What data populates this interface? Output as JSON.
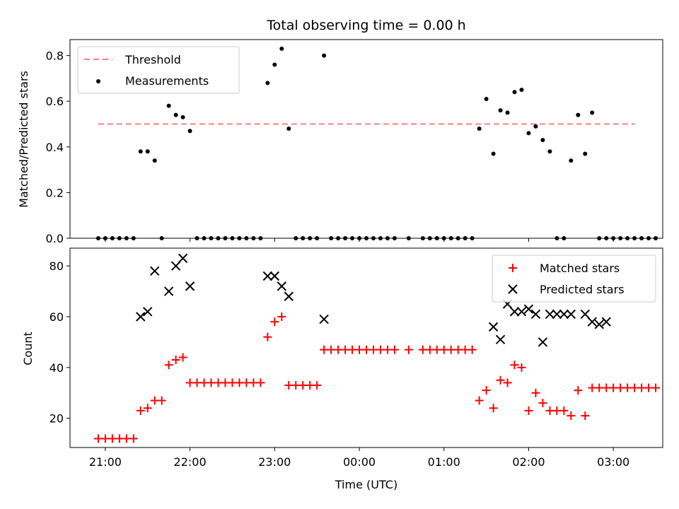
{
  "chart_data": [
    {
      "type": "scatter",
      "title": "Total observing time = 0.00 h",
      "xlabel": "",
      "ylabel": "Matched/Predicted stars",
      "xlim": [
        "20:35",
        "03:35"
      ],
      "ylim": [
        0,
        0.87
      ],
      "xticks": [
        "21:00",
        "22:00",
        "23:00",
        "00:00",
        "01:00",
        "02:00",
        "03:00"
      ],
      "yticks": [
        "0.0",
        "0.2",
        "0.4",
        "0.6",
        "0.8"
      ],
      "legend_position": "top-left",
      "series": [
        {
          "name": "Threshold",
          "style": "dashed-line",
          "color": "#ff7f7f",
          "x": [
            "20:55",
            "03:15"
          ],
          "y": [
            0.5,
            0.5
          ]
        },
        {
          "name": "Measurements",
          "style": "dot",
          "color": "#000000",
          "x": [
            "20:55",
            "21:00",
            "21:05",
            "21:10",
            "21:15",
            "21:20",
            "21:25",
            "21:30",
            "21:35",
            "21:40",
            "21:45",
            "21:50",
            "21:55",
            "22:00",
            "22:05",
            "22:10",
            "22:15",
            "22:20",
            "22:25",
            "22:30",
            "22:35",
            "22:40",
            "22:45",
            "22:50",
            "22:55",
            "23:00",
            "23:05",
            "23:10",
            "23:15",
            "23:20",
            "23:25",
            "23:30",
            "23:35",
            "23:40",
            "23:45",
            "23:50",
            "23:55",
            "00:00",
            "00:05",
            "00:10",
            "00:15",
            "00:20",
            "00:25",
            "00:35",
            "00:45",
            "00:50",
            "00:55",
            "01:00",
            "01:05",
            "01:10",
            "01:15",
            "01:20",
            "01:25",
            "01:30",
            "01:35",
            "01:40",
            "01:45",
            "01:50",
            "01:55",
            "02:00",
            "02:05",
            "02:10",
            "02:15",
            "02:20",
            "02:25",
            "02:30",
            "02:35",
            "02:40",
            "02:45",
            "02:50",
            "02:55",
            "03:00",
            "03:05",
            "03:10",
            "03:15",
            "03:20",
            "03:25",
            "03:30"
          ],
          "y": [
            0,
            0,
            0,
            0,
            0,
            0,
            0.38,
            0.38,
            0.34,
            0,
            0.58,
            0.54,
            0.53,
            0.47,
            0,
            0,
            0,
            0,
            0,
            0,
            0,
            0,
            0,
            0,
            0.68,
            0.76,
            0.83,
            0.48,
            0,
            0,
            0,
            0,
            0.8,
            0,
            0,
            0,
            0,
            0,
            0,
            0,
            0,
            0,
            0,
            0,
            0,
            0,
            0,
            0,
            0,
            0,
            0,
            0,
            0.48,
            0.61,
            0.37,
            0.56,
            0.55,
            0.64,
            0.65,
            0.46,
            0.49,
            0.43,
            0.38,
            0,
            0,
            0.34,
            0.54,
            0.37,
            0.55,
            0,
            0,
            0,
            0,
            0,
            0,
            0,
            0,
            0
          ]
        }
      ]
    },
    {
      "type": "scatter",
      "title": "",
      "xlabel": "Time (UTC)",
      "ylabel": "Count",
      "xlim": [
        "20:35",
        "03:35"
      ],
      "ylim": [
        8.5,
        87
      ],
      "xticks": [
        "21:00",
        "22:00",
        "23:00",
        "00:00",
        "01:00",
        "02:00",
        "03:00"
      ],
      "yticks": [
        "20",
        "40",
        "60",
        "80"
      ],
      "legend_position": "top-right",
      "series": [
        {
          "name": "Matched stars",
          "marker": "+",
          "color": "#ff0000",
          "x": [
            "20:55",
            "21:00",
            "21:05",
            "21:10",
            "21:15",
            "21:20",
            "21:25",
            "21:30",
            "21:35",
            "21:40",
            "21:45",
            "21:50",
            "21:55",
            "22:00",
            "22:05",
            "22:10",
            "22:15",
            "22:20",
            "22:25",
            "22:30",
            "22:35",
            "22:40",
            "22:45",
            "22:50",
            "22:55",
            "23:00",
            "23:05",
            "23:10",
            "23:15",
            "23:20",
            "23:25",
            "23:30",
            "23:35",
            "23:40",
            "23:45",
            "23:50",
            "23:55",
            "00:00",
            "00:05",
            "00:10",
            "00:15",
            "00:20",
            "00:25",
            "00:35",
            "00:45",
            "00:50",
            "00:55",
            "01:00",
            "01:05",
            "01:10",
            "01:15",
            "01:20",
            "01:25",
            "01:30",
            "01:35",
            "01:40",
            "01:45",
            "01:50",
            "01:55",
            "02:00",
            "02:05",
            "02:10",
            "02:15",
            "02:20",
            "02:25",
            "02:30",
            "02:35",
            "02:40",
            "02:45",
            "02:50",
            "02:55",
            "03:00",
            "03:05",
            "03:10",
            "03:15",
            "03:20",
            "03:25",
            "03:30"
          ],
          "y": [
            12,
            12,
            12,
            12,
            12,
            12,
            23,
            24,
            27,
            27,
            41,
            43,
            44,
            34,
            34,
            34,
            34,
            34,
            34,
            34,
            34,
            34,
            34,
            34,
            52,
            58,
            60,
            33,
            33,
            33,
            33,
            33,
            47,
            47,
            47,
            47,
            47,
            47,
            47,
            47,
            47,
            47,
            47,
            47,
            47,
            47,
            47,
            47,
            47,
            47,
            47,
            47,
            27,
            31,
            24,
            35,
            34,
            41,
            40,
            23,
            30,
            26,
            23,
            23,
            23,
            21,
            31,
            21,
            32,
            32,
            32,
            32,
            32,
            32,
            32,
            32,
            32,
            32
          ]
        },
        {
          "name": "Predicted stars",
          "marker": "x",
          "color": "#000000",
          "x": [
            "21:25",
            "21:30",
            "21:35",
            "21:45",
            "21:50",
            "21:55",
            "22:00",
            "22:55",
            "23:00",
            "23:05",
            "23:10",
            "23:35",
            "01:35",
            "01:40",
            "01:45",
            "01:50",
            "01:55",
            "02:00",
            "02:05",
            "02:10",
            "02:15",
            "02:20",
            "02:25",
            "02:30",
            "02:40",
            "02:45",
            "02:50",
            "02:55"
          ],
          "y": [
            60,
            62,
            78,
            70,
            80,
            83,
            72,
            76,
            76,
            72,
            68,
            59,
            56,
            51,
            65,
            62,
            62,
            63,
            61,
            50,
            61,
            61,
            61,
            61,
            61,
            58,
            57,
            58
          ]
        }
      ]
    }
  ]
}
